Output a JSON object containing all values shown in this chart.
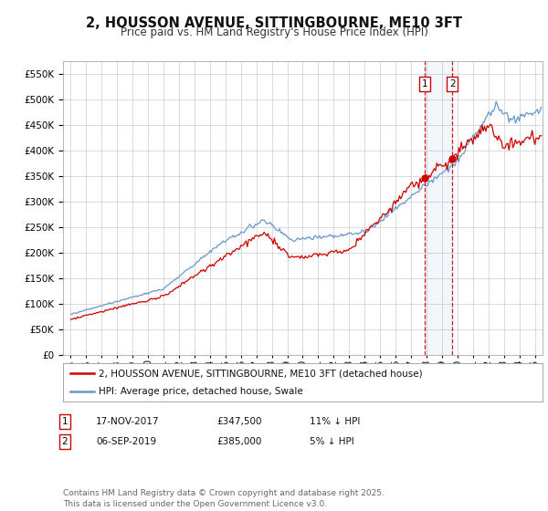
{
  "title": "2, HOUSSON AVENUE, SITTINGBOURNE, ME10 3FT",
  "subtitle": "Price paid vs. HM Land Registry's House Price Index (HPI)",
  "legend_label_red": "2, HOUSSON AVENUE, SITTINGBOURNE, ME10 3FT (detached house)",
  "legend_label_blue": "HPI: Average price, detached house, Swale",
  "annotation1_text": "17-NOV-2017",
  "annotation1_price": "£347,500",
  "annotation1_hpi": "11% ↓ HPI",
  "annotation2_text": "06-SEP-2019",
  "annotation2_price": "£385,000",
  "annotation2_hpi": "5% ↓ HPI",
  "footer": "Contains HM Land Registry data © Crown copyright and database right 2025.\nThis data is licensed under the Open Government Licence v3.0.",
  "ylim": [
    0,
    575000
  ],
  "yticks": [
    0,
    50000,
    100000,
    150000,
    200000,
    250000,
    300000,
    350000,
    400000,
    450000,
    500000,
    550000
  ],
  "xlim_start": 1994.5,
  "xlim_end": 2025.5,
  "marker1_x": 2017.88,
  "marker1_y": 347500,
  "marker2_x": 2019.67,
  "marker2_y": 385000,
  "vline1_x": 2017.88,
  "vline2_x": 2019.67,
  "red_color": "#cc0000",
  "blue_color": "#6699cc",
  "vline_color": "#cc0000",
  "background_color": "#ffffff",
  "grid_color": "#cccccc",
  "title_fontsize": 10.5,
  "subtitle_fontsize": 8.5,
  "tick_fontsize": 7.5,
  "legend_fontsize": 7.5,
  "annot_fontsize": 7.5,
  "footer_fontsize": 6.5
}
